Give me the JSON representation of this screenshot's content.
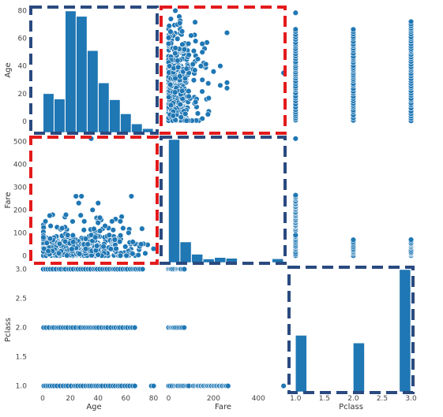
{
  "chart_data": {
    "type": "scatter",
    "layout": "pairplot-3x3",
    "variables": [
      "Age",
      "Fare",
      "Pclass"
    ],
    "colors": {
      "points": "#1f77b4",
      "point_edge": "#ffffff",
      "highlight_red": "#e31a1c",
      "highlight_blue": "#2a4a80"
    },
    "axes": {
      "Age": {
        "label": "Age",
        "range": [
          -8,
          82
        ],
        "ticks": [
          0,
          20,
          40,
          60,
          80
        ],
        "tick_labels": [
          "0",
          "20",
          "40",
          "60",
          "80"
        ]
      },
      "Fare": {
        "label": "Fare",
        "range": [
          -30,
          515
        ],
        "ticks": [
          0,
          100,
          200,
          300,
          400,
          500
        ],
        "tick_labels": [
          "0",
          "100",
          "200",
          "300",
          "400",
          "500"
        ],
        "x_ticks": [
          0,
          200,
          400
        ],
        "x_tick_labels": [
          "0",
          "200",
          "400"
        ]
      },
      "Pclass": {
        "label": "Pclass",
        "range": [
          0.9,
          3.02
        ],
        "ticks": [
          1.0,
          1.5,
          2.0,
          2.5,
          3.0
        ],
        "tick_labels": [
          "1.0",
          "1.5",
          "2.0",
          "2.5",
          "3.0"
        ],
        "x_ticks": [
          1.0,
          1.5,
          2.0,
          2.5,
          3.0
        ],
        "x_tick_labels": [
          "1.0",
          "1.5",
          "2.0",
          "2.5",
          "3.0"
        ]
      }
    },
    "histograms": {
      "Age": {
        "bin_edges": [
          0.42,
          8.38,
          16.34,
          24.3,
          32.26,
          40.22,
          48.18,
          56.14,
          64.1,
          72.06,
          80
        ],
        "counts": [
          54,
          46,
          177,
          169,
          118,
          70,
          45,
          24,
          9,
          2
        ]
      },
      "Fare": {
        "bin_edges": [
          0,
          51.2,
          102.5,
          153.7,
          204.9,
          256.2,
          307.4,
          358.6,
          409.8,
          461.1,
          512.3
        ],
        "counts": [
          732,
          106,
          31,
          2,
          11,
          6,
          0,
          0,
          0,
          3
        ]
      },
      "Pclass": {
        "bin_edges": [
          1.0,
          1.2,
          1.4,
          1.6,
          1.8,
          2.0,
          2.2,
          2.4,
          2.6,
          2.8,
          3.0
        ],
        "counts": [
          216,
          0,
          0,
          0,
          0,
          184,
          0,
          0,
          0,
          491
        ]
      }
    },
    "scatter_samples": {
      "age_vs_fare": [
        [
          1,
          30
        ],
        [
          2,
          150
        ],
        [
          4,
          20
        ],
        [
          14,
          120
        ],
        [
          18,
          90
        ],
        [
          22,
          60
        ],
        [
          24,
          260
        ],
        [
          26,
          230
        ],
        [
          28,
          260
        ],
        [
          30,
          150
        ],
        [
          35,
          90
        ],
        [
          36,
          200
        ],
        [
          38,
          80
        ],
        [
          40,
          230
        ],
        [
          45,
          130
        ],
        [
          48,
          90
        ],
        [
          50,
          150
        ],
        [
          52,
          70
        ],
        [
          56,
          150
        ],
        [
          58,
          120
        ],
        [
          62,
          100
        ],
        [
          64,
          260
        ],
        [
          65,
          60
        ],
        [
          70,
          40
        ],
        [
          71,
          50
        ],
        [
          74,
          10
        ],
        [
          80,
          30
        ]
      ],
      "age_vs_pclass": {
        "class1": [
          [
            0.9,
            1
          ],
          [
            14,
            1
          ],
          [
            18,
            1
          ],
          [
            25,
            1
          ],
          [
            35,
            1
          ],
          [
            45,
            1
          ],
          [
            52,
            1
          ],
          [
            58,
            1
          ],
          [
            62,
            1
          ],
          [
            70,
            1
          ],
          [
            80,
            1
          ]
        ],
        "class2": [
          [
            1,
            2
          ],
          [
            8,
            2
          ],
          [
            20,
            2
          ],
          [
            32,
            2
          ],
          [
            40,
            2
          ],
          [
            50,
            2
          ],
          [
            60,
            2
          ],
          [
            70,
            2
          ]
        ],
        "class3": [
          [
            0.4,
            3
          ],
          [
            10,
            3
          ],
          [
            24,
            3
          ],
          [
            34,
            3
          ],
          [
            44,
            3
          ],
          [
            55,
            3
          ],
          [
            65,
            3
          ],
          [
            74,
            3
          ]
        ]
      },
      "fare_vs_pclass": {
        "class1": [
          [
            0,
            1
          ],
          [
            512,
            1
          ]
        ],
        "class2": [
          [
            0,
            2
          ],
          [
            40,
            2
          ],
          [
            74,
            2
          ]
        ],
        "class3": [
          [
            0,
            3
          ],
          [
            30,
            3
          ],
          [
            70,
            3
          ]
        ]
      }
    },
    "highlight_boxes": [
      {
        "row": 0,
        "col": 0,
        "color": "blue"
      },
      {
        "row": 0,
        "col": 1,
        "color": "red"
      },
      {
        "row": 1,
        "col": 0,
        "color": "red"
      },
      {
        "row": 1,
        "col": 1,
        "color": "blue"
      },
      {
        "row": 2,
        "col": 2,
        "color": "blue"
      }
    ]
  }
}
